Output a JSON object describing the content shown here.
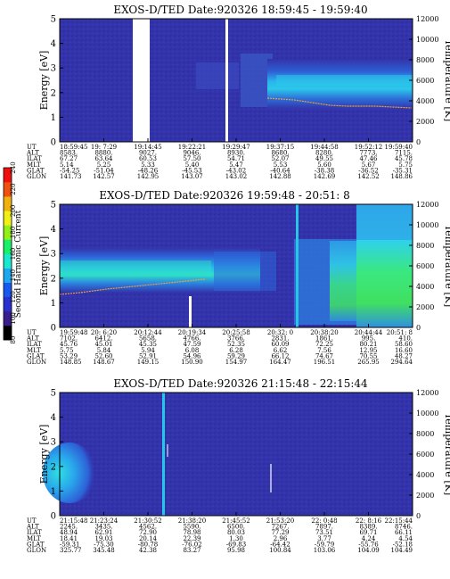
{
  "colorbar": {
    "label": "Second Harmonic Current",
    "ticks": [
      "80",
      "100",
      "120",
      "140",
      "160",
      "180",
      "200",
      "220",
      "240"
    ],
    "colors": [
      "#000000",
      "#3a1f8c",
      "#2a2fd0",
      "#1858f0",
      "#1ca8f0",
      "#19e8d0",
      "#18f068",
      "#90f018",
      "#f0f018",
      "#f0b010",
      "#f05010",
      "#f01010"
    ]
  },
  "colors": {
    "background": "#3232a8",
    "blue_dark": "#2a2ab0",
    "blue_mid": "#2d6ad8",
    "cyan": "#27c6e8",
    "green": "#37e86a",
    "gap": "#ffffff"
  },
  "chart_data": [
    {
      "type": "heatmap",
      "title": "EXOS-D/TED  Date:920326  18:59:45 - 19:59:40",
      "ylabel": "Energy [eV]",
      "y2label": "Temperature [K]",
      "ylim": [
        0,
        5
      ],
      "y2lim": [
        0,
        12000
      ],
      "yticks": [
        "0",
        "1",
        "2",
        "3",
        "4",
        "5"
      ],
      "y2ticks": [
        "0",
        "2000",
        "4000",
        "6000",
        "8000",
        "10000",
        "12000"
      ],
      "ephemeris": {
        "labels": [
          "UT",
          "ALT",
          "ILAT",
          "MLT",
          "GLAT",
          "GLON"
        ],
        "columns": [
          [
            "18:59:45",
            "8583.",
            "67.27",
            "5.14",
            "-54.25",
            "141.73"
          ],
          [
            "19: 7:29",
            "8880.",
            "63.64",
            "5.25",
            "-51.04",
            "142.57"
          ],
          [
            "19:14:45",
            "9027.",
            "60.53",
            "5.33",
            "-48.26",
            "142.95"
          ],
          [
            "19:22:21",
            "9046.",
            "57.50",
            "5.40",
            "-45.53",
            "143.07"
          ],
          [
            "19:29:47",
            "8930.",
            "54.71",
            "5.47",
            "-43.02",
            "143.02"
          ],
          [
            "19:37:15",
            "8680.",
            "52.07",
            "5.53",
            "-40.64",
            "142.88"
          ],
          [
            "19:44:58",
            "8280.",
            "49.55",
            "5.60",
            "-38.38",
            "142.69"
          ],
          [
            "19:52:12",
            "7773.",
            "47.46",
            "5.67",
            "-36.52",
            "142.52"
          ],
          [
            "19:59:40",
            "7115.",
            "45.78",
            "5.75",
            "-35.31",
            "148.86"
          ]
        ]
      },
      "data_gaps_ut": [
        [
          "19:12",
          "19:15"
        ],
        [
          "19:29",
          "19:30"
        ]
      ],
      "features": [
        {
          "description": "",
          "energy_band_ev": [
            1.8,
            3.2
          ],
          "ut_range": [
            "19:30",
            "19:59:40"
          ]
        }
      ]
    },
    {
      "type": "heatmap",
      "title": "EXOS-D/TED   Date:920326  19:59:48 - 20:51: 8",
      "ylabel": "Energy [eV]",
      "y2label": "Temperature [K]",
      "ylim": [
        0,
        5
      ],
      "y2lim": [
        0,
        12000
      ],
      "yticks": [
        "0",
        "1",
        "2",
        "3",
        "4",
        "5"
      ],
      "y2ticks": [
        "0",
        "2000",
        "4000",
        "6000",
        "8000",
        "10000",
        "12000"
      ],
      "ephemeris": {
        "labels": [
          "UT",
          "ALT",
          "ILAT",
          "MLT",
          "GLAT",
          "GLON"
        ],
        "columns": [
          [
            "19:59:48",
            "7102.",
            "45.76",
            "5.75",
            "53.29",
            "148.85"
          ],
          [
            "20: 6:20",
            "6412.",
            "45.01",
            "5.84",
            "52.60",
            "148.67"
          ],
          [
            "20:12:44",
            "5658.",
            "45.35",
            "5.94",
            "52.91",
            "149.15"
          ],
          [
            "20:19:34",
            "4766.",
            "47.59",
            "6.08",
            "54.96",
            "150.90"
          ],
          [
            "20:25:58",
            "3766.",
            "52.35",
            "6.28",
            "59.29",
            "154.97"
          ],
          [
            "20:32: 0",
            "2831.",
            "60.09",
            "6.62",
            "66.12",
            "164.47"
          ],
          [
            "20:38:20",
            "1861.",
            "72.25",
            "7.56",
            "74.67",
            "196.51"
          ],
          [
            "20:44:44",
            "995.",
            "80.21",
            "12.95",
            "70.55",
            "265.95"
          ],
          [
            "20:51: 8",
            "410.",
            "58.60",
            "16.60",
            "48.27",
            "294.64"
          ]
        ]
      },
      "data_gaps_ut": [
        [
          "20:19",
          "20:19:30"
        ],
        [
          "20:33",
          "20:33:30"
        ]
      ],
      "features": [
        {
          "description": "",
          "energy_band_ev": [
            1.8,
            3.0
          ],
          "ut_range": [
            "19:59:48",
            "20:25"
          ]
        },
        {
          "description": "",
          "energy_band_ev": [
            0.3,
            3.8
          ],
          "ut_range": [
            "20:36",
            "20:44"
          ]
        },
        {
          "description": "",
          "energy_band_ev": [
            0.3,
            5.0
          ],
          "ut_range": [
            "20:44",
            "20:51:08"
          ]
        }
      ]
    },
    {
      "type": "heatmap",
      "title": "EXOS-D/TED  Date:920326  21:15:48 - 22:15:44",
      "ylabel": "Energy [eV]",
      "y2label": "Temperature [K]",
      "ylim": [
        0,
        5
      ],
      "y2lim": [
        0,
        12000
      ],
      "yticks": [
        "0",
        "1",
        "2",
        "3",
        "4",
        "5"
      ],
      "y2ticks": [
        "0",
        "2000",
        "4000",
        "6000",
        "8000",
        "10000",
        "12000"
      ],
      "ephemeris": {
        "labels": [
          "UT",
          "ALT",
          "ILAT",
          "MLT",
          "GLAT",
          "GLON"
        ],
        "columns": [
          [
            "21:15:48",
            "2245.",
            "48.94",
            "18.41",
            "-59.31",
            "325.77"
          ],
          [
            "21:23:24",
            "3435.",
            "62.91",
            "19.03",
            "-75.30",
            "345.48"
          ],
          [
            "21:30:52",
            "4562.",
            "72.90",
            "20.14",
            "-80.78",
            "42.38"
          ],
          [
            "21:38:20",
            "5590.",
            "78.98",
            "22.39",
            "-76.02",
            "83.27"
          ],
          [
            "21:45:52",
            "6500.",
            "80.03",
            "1.30",
            "-69.83",
            "95.98"
          ],
          [
            "21:53:20",
            "7267.",
            "77.29",
            "2.96",
            "-64.42",
            "100.84"
          ],
          [
            "22: 0:48",
            "7897.",
            "73.51",
            "3.77",
            "-59.79",
            "103.06"
          ],
          [
            "22: 8:16",
            "8389.",
            "69.71",
            "4.24",
            "-55.76",
            "104.09"
          ],
          [
            "22:15:44",
            "8746.",
            "66.11",
            "4.54",
            "-52.18",
            "104.49"
          ]
        ]
      },
      "data_gaps_ut": [
        [
          "21:30:20",
          "21:30:35"
        ]
      ],
      "features": [
        {
          "description": "",
          "energy_band_ev": [
            1.3,
            2.5
          ],
          "ut_range": [
            "21:15:48",
            "21:19"
          ]
        }
      ]
    }
  ]
}
